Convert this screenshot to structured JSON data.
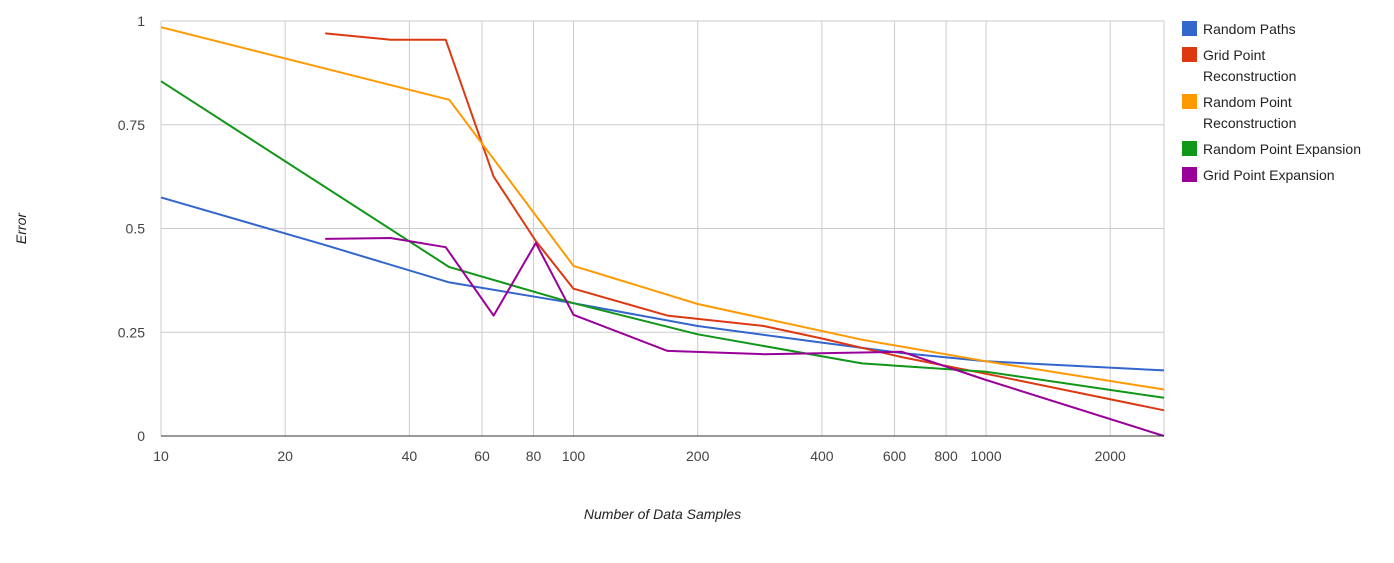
{
  "chart_data": {
    "type": "line",
    "xlabel": "Number of Data Samples",
    "ylabel": "Error",
    "x_scale": "log",
    "xlim": [
      10,
      2700
    ],
    "ylim": [
      0,
      1
    ],
    "x_ticks": [
      10,
      20,
      40,
      60,
      80,
      100,
      200,
      400,
      600,
      800,
      1000,
      2000
    ],
    "x_tick_labels": [
      "10",
      "20",
      "40",
      "60",
      "80",
      "100",
      "200",
      "400",
      "600",
      "800",
      "1000",
      "2000"
    ],
    "y_ticks": [
      0,
      0.25,
      0.5,
      0.75,
      1
    ],
    "y_tick_labels": [
      "0",
      "0.25",
      "0.5",
      "0.75",
      "1"
    ],
    "grid": true,
    "legend_position": "right",
    "series": [
      {
        "name": "Random Paths",
        "color": "#3366cc",
        "x": [
          10,
          25,
          50,
          100,
          200,
          400,
          625,
          1000,
          2700
        ],
        "y": [
          0.575,
          0.46,
          0.37,
          0.32,
          0.265,
          0.225,
          0.2,
          0.18,
          0.158
        ]
      },
      {
        "name": "Grid Point Reconstruction",
        "color": "#dc3912",
        "x": [
          25,
          36,
          49,
          64,
          81,
          100,
          169,
          289,
          400,
          625,
          1000,
          2700
        ],
        "y": [
          0.97,
          0.955,
          0.955,
          0.625,
          0.47,
          0.355,
          0.29,
          0.265,
          0.235,
          0.19,
          0.15,
          0.062
        ]
      },
      {
        "name": "Random Point Reconstruction",
        "color": "#ff9900",
        "x": [
          10,
          50,
          100,
          200,
          500,
          1000,
          2700
        ],
        "y": [
          0.985,
          0.81,
          0.41,
          0.318,
          0.232,
          0.18,
          0.112
        ]
      },
      {
        "name": "Random Point Expansion",
        "color": "#109618",
        "x": [
          10,
          50,
          100,
          200,
          500,
          1000,
          2700
        ],
        "y": [
          0.855,
          0.407,
          0.32,
          0.245,
          0.175,
          0.155,
          0.092
        ]
      },
      {
        "name": "Grid Point Expansion",
        "color": "#990099",
        "x": [
          25,
          36,
          49,
          64,
          81,
          100,
          169,
          289,
          625,
          1000,
          2700
        ],
        "y": [
          0.475,
          0.477,
          0.455,
          0.29,
          0.465,
          0.292,
          0.205,
          0.197,
          0.203,
          0.135,
          0
        ]
      }
    ]
  }
}
